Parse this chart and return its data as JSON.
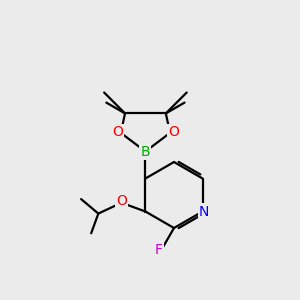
{
  "bg_color": "#ebebeb",
  "line_color": "#000000",
  "bond_width": 1.6,
  "atom_colors": {
    "N": "#0000ff",
    "O": "#ff0000",
    "B": "#00aa00",
    "F": "#cc00cc"
  },
  "font_size": 9.5,
  "xlim": [
    0,
    10
  ],
  "ylim": [
    0,
    10
  ]
}
